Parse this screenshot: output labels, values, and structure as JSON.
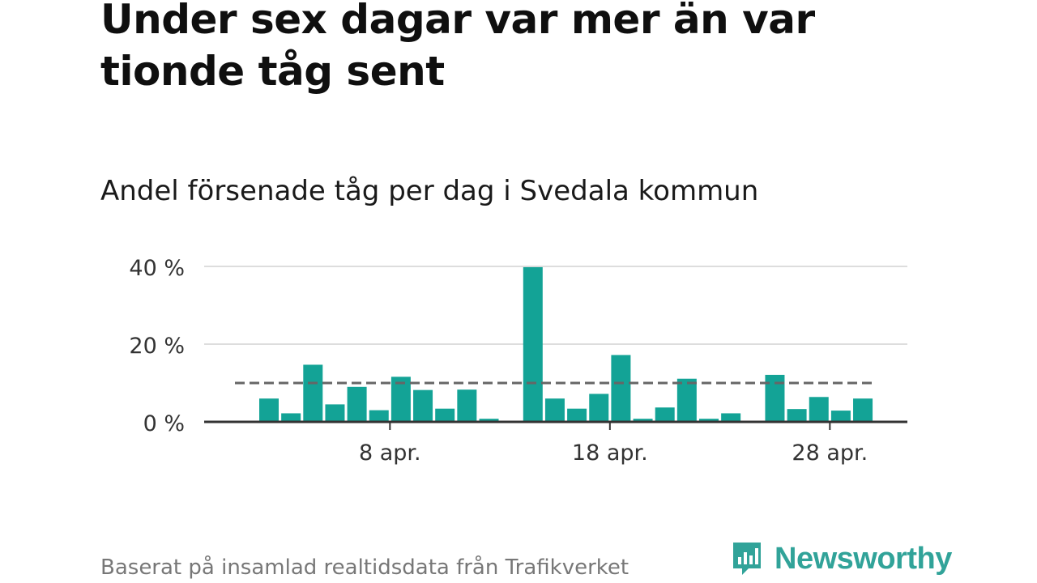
{
  "title": "Under sex dagar var mer än var tionde tåg sent",
  "subtitle": "Andel försenade tåg per dag i Svedala kommun",
  "source": "Baserat på insamlad realtidsdata från Trafikverket",
  "brand": {
    "name": "Newsworthy",
    "color": "#31a399"
  },
  "colors": {
    "bar": "#13a396",
    "grid": "#dddddd",
    "axis": "#333333",
    "reference_line": "#666666"
  },
  "chart_data": {
    "type": "bar",
    "x": [
      "2 apr.",
      "3 apr.",
      "4 apr.",
      "5 apr.",
      "6 apr.",
      "7 apr.",
      "8 apr.",
      "9 apr.",
      "10 apr.",
      "11 apr.",
      "12 apr.",
      "13 apr.",
      "14 apr.",
      "15 apr.",
      "16 apr.",
      "17 apr.",
      "18 apr.",
      "19 apr.",
      "20 apr.",
      "21 apr.",
      "22 apr.",
      "23 apr.",
      "24 apr.",
      "25 apr.",
      "26 apr.",
      "27 apr.",
      "28 apr.",
      "29 apr."
    ],
    "values": [
      6,
      2.2,
      14.7,
      4.5,
      9,
      3,
      11.6,
      8.2,
      3.4,
      8.3,
      0.8,
      null,
      39.8,
      6,
      3.4,
      7.2,
      17.2,
      0.8,
      3.7,
      11.1,
      0.8,
      2.2,
      null,
      12.1,
      3.3,
      6.4,
      2.9,
      6
    ],
    "x_ticks": [
      {
        "x": "8 apr.",
        "label": "8 apr."
      },
      {
        "x": "18 apr.",
        "label": "18 apr."
      },
      {
        "x": "28 apr.",
        "label": "28 apr."
      }
    ],
    "y_ticks": [
      {
        "value": 0,
        "label": "0 %"
      },
      {
        "value": 20,
        "label": "20 %"
      },
      {
        "value": 40,
        "label": "40 %"
      }
    ],
    "ylim": [
      0,
      40
    ],
    "reference_line": {
      "value": 10,
      "style": "dashed"
    },
    "grid": true,
    "xlabel": "",
    "ylabel": ""
  }
}
